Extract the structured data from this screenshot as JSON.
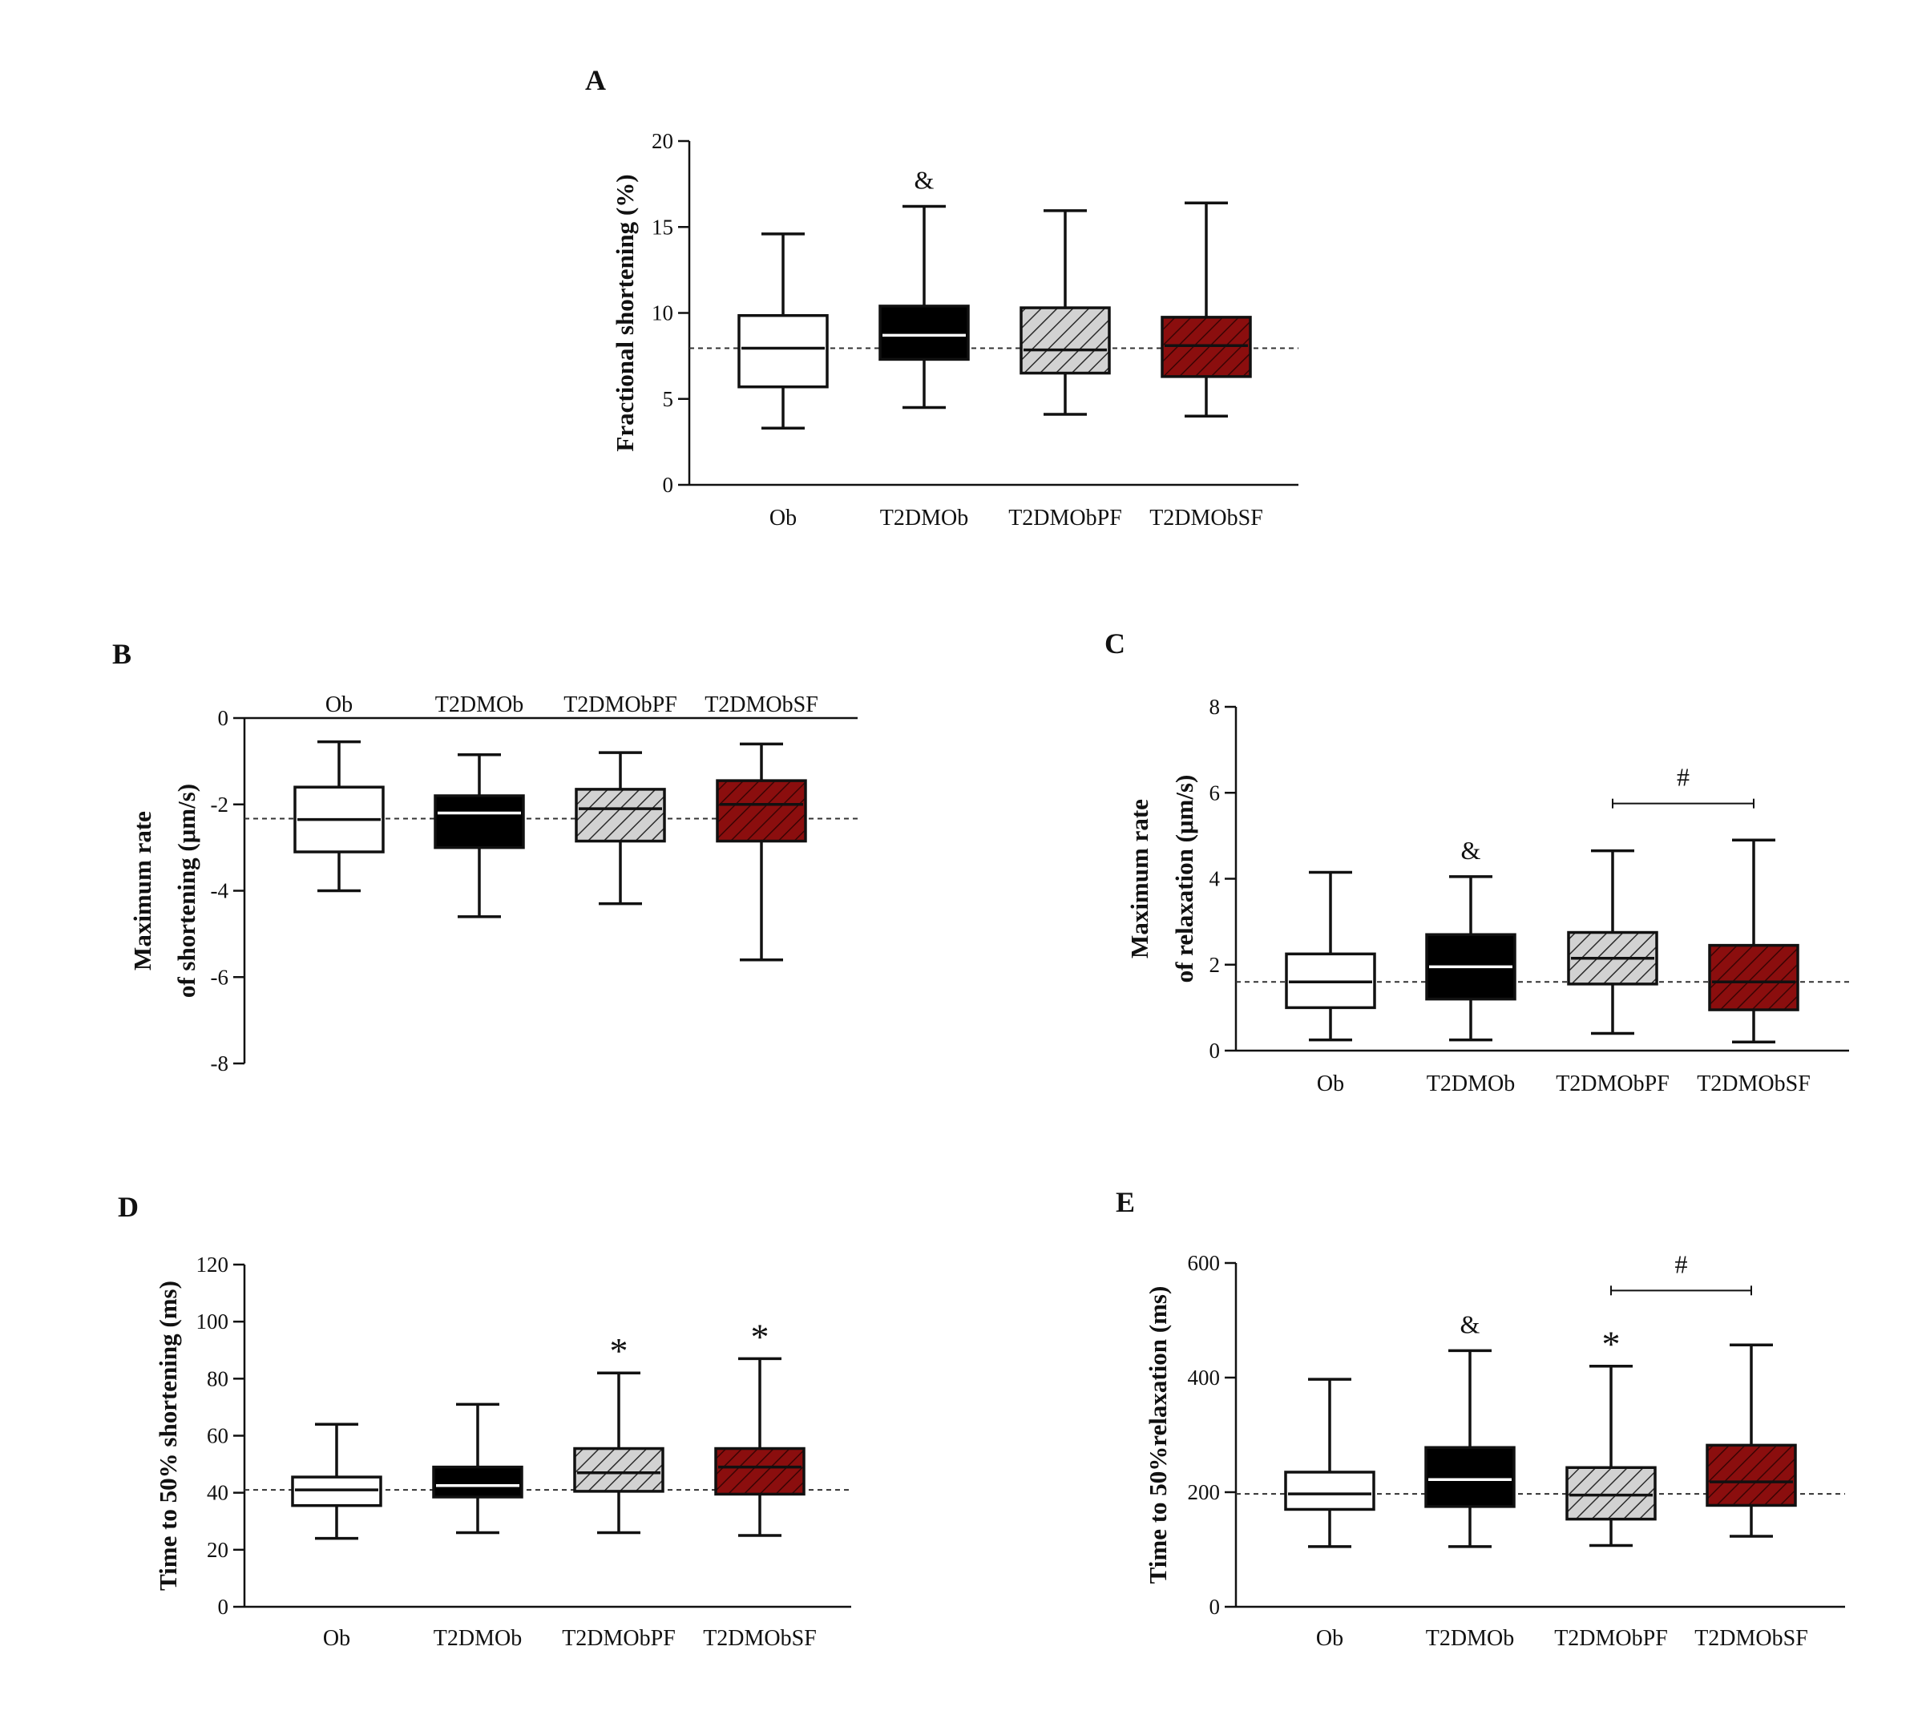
{
  "colors": {
    "axis": "#111111",
    "Ob": "#ffffff",
    "T2DMOb": "#000000",
    "T2DMObPF_fill": "#d2d2d2",
    "T2DMObSF_fill": "#8b0e0e",
    "hatch_dark": "#2a2a2a",
    "hatch_red": "#3a0404",
    "reference_line": "#333333"
  },
  "chart_data": [
    {
      "panel": "A",
      "type": "box",
      "title": "",
      "xlabel": "",
      "ylabel": "Fractional shortening (%)",
      "categories": [
        "Ob",
        "T2DMOb",
        "T2DMObPF",
        "T2DMObSF"
      ],
      "ylim": [
        0,
        20
      ],
      "yticks": [
        0,
        5,
        10,
        15,
        20
      ],
      "yticklabels": [
        "0",
        "5",
        "10",
        "15",
        "20"
      ],
      "reference_line": 7.95,
      "boxes": [
        {
          "min": 3.3,
          "q1": 5.7,
          "median": 7.95,
          "q3": 9.85,
          "max": 14.6
        },
        {
          "min": 4.5,
          "q1": 7.3,
          "median": 8.7,
          "q3": 10.4,
          "max": 16.2
        },
        {
          "min": 4.1,
          "q1": 6.5,
          "median": 7.85,
          "q3": 10.3,
          "max": 15.95
        },
        {
          "min": 4.0,
          "q1": 6.3,
          "median": 8.1,
          "q3": 9.75,
          "max": 16.4
        }
      ],
      "annotations": [
        {
          "category": "T2DMOb",
          "text": "&"
        }
      ]
    },
    {
      "panel": "B",
      "type": "box",
      "title": "",
      "xlabel": "",
      "ylabel": [
        "Maximum rate",
        "of shortening (μm/s)"
      ],
      "categories": [
        "Ob",
        "T2DMOb",
        "T2DMObPF",
        "T2DMObSF"
      ],
      "ylim": [
        -8,
        0
      ],
      "yticks": [
        -8,
        -6,
        -4,
        -2,
        0
      ],
      "yticklabels": [
        "-8",
        "-6",
        "-4",
        "-2",
        "0"
      ],
      "reference_line": -2.33,
      "boxes": [
        {
          "min": -4.0,
          "q1": -3.1,
          "median": -2.35,
          "q3": -1.6,
          "max": -0.55
        },
        {
          "min": -4.6,
          "q1": -3.0,
          "median": -2.2,
          "q3": -1.8,
          "max": -0.85
        },
        {
          "min": -4.3,
          "q1": -2.85,
          "median": -2.1,
          "q3": -1.65,
          "max": -0.8
        },
        {
          "min": -5.6,
          "q1": -2.85,
          "median": -2.0,
          "q3": -1.45,
          "max": -0.6
        }
      ],
      "annotations": []
    },
    {
      "panel": "C",
      "type": "box",
      "title": "",
      "xlabel": "",
      "ylabel": [
        "Maximum rate",
        "of relaxation (μm/s)"
      ],
      "categories": [
        "Ob",
        "T2DMOb",
        "T2DMObPF",
        "T2DMObSF"
      ],
      "ylim": [
        0,
        8
      ],
      "yticks": [
        0,
        2,
        4,
        6,
        8
      ],
      "yticklabels": [
        "0",
        "2",
        "4",
        "6",
        "8"
      ],
      "reference_line": 1.6,
      "boxes": [
        {
          "min": 0.25,
          "q1": 1.0,
          "median": 1.6,
          "q3": 2.25,
          "max": 4.15
        },
        {
          "min": 0.25,
          "q1": 1.2,
          "median": 1.95,
          "q3": 2.7,
          "max": 4.05
        },
        {
          "min": 0.4,
          "q1": 1.55,
          "median": 2.15,
          "q3": 2.75,
          "max": 4.65
        },
        {
          "min": 0.2,
          "q1": 0.95,
          "median": 1.6,
          "q3": 2.45,
          "max": 4.9
        }
      ],
      "annotations": [
        {
          "category": "T2DMOb",
          "text": "&"
        }
      ],
      "brackets": [
        {
          "from": "T2DMObPF",
          "to": "T2DMObSF",
          "value": 5.75,
          "text": "#"
        }
      ]
    },
    {
      "panel": "D",
      "type": "box",
      "title": "",
      "xlabel": "",
      "ylabel": "Time to 50% shortening (ms)",
      "categories": [
        "Ob",
        "T2DMOb",
        "T2DMObPF",
        "T2DMObSF"
      ],
      "ylim": [
        0,
        120
      ],
      "yticks": [
        0,
        20,
        40,
        60,
        80,
        100,
        120
      ],
      "yticklabels": [
        "0",
        "20",
        "40",
        "60",
        "80",
        "100",
        "120"
      ],
      "reference_line": 41,
      "boxes": [
        {
          "min": 24,
          "q1": 35.5,
          "median": 41,
          "q3": 45.5,
          "max": 64
        },
        {
          "min": 26,
          "q1": 38.5,
          "median": 42.5,
          "q3": 49,
          "max": 71
        },
        {
          "min": 26,
          "q1": 40.5,
          "median": 47,
          "q3": 55.5,
          "max": 82
        },
        {
          "min": 25,
          "q1": 39.5,
          "median": 49,
          "q3": 55.5,
          "max": 87
        }
      ],
      "annotations": [
        {
          "category": "T2DMObPF",
          "text": "*"
        },
        {
          "category": "T2DMObSF",
          "text": "*"
        }
      ]
    },
    {
      "panel": "E",
      "type": "box",
      "title": "",
      "xlabel": "",
      "ylabel": "Time to 50%relaxation (ms)",
      "categories": [
        "Ob",
        "T2DMOb",
        "T2DMObPF",
        "T2DMObSF"
      ],
      "ylim": [
        0,
        600
      ],
      "yticks": [
        0,
        200,
        400,
        600
      ],
      "yticklabels": [
        "0",
        "200",
        "400",
        "600"
      ],
      "reference_line": 197,
      "boxes": [
        {
          "min": 105,
          "q1": 170,
          "median": 197,
          "q3": 235,
          "max": 397
        },
        {
          "min": 105,
          "q1": 175,
          "median": 222,
          "q3": 278,
          "max": 447
        },
        {
          "min": 107,
          "q1": 153,
          "median": 195,
          "q3": 243,
          "max": 420
        },
        {
          "min": 123,
          "q1": 177,
          "median": 218,
          "q3": 282,
          "max": 457
        }
      ],
      "annotations": [
        {
          "category": "T2DMOb",
          "text": "&"
        },
        {
          "category": "T2DMObPF",
          "text": "*"
        }
      ],
      "brackets": [
        {
          "from": "T2DMObPF",
          "to": "T2DMObSF",
          "value": 552,
          "text": "#"
        }
      ]
    }
  ]
}
